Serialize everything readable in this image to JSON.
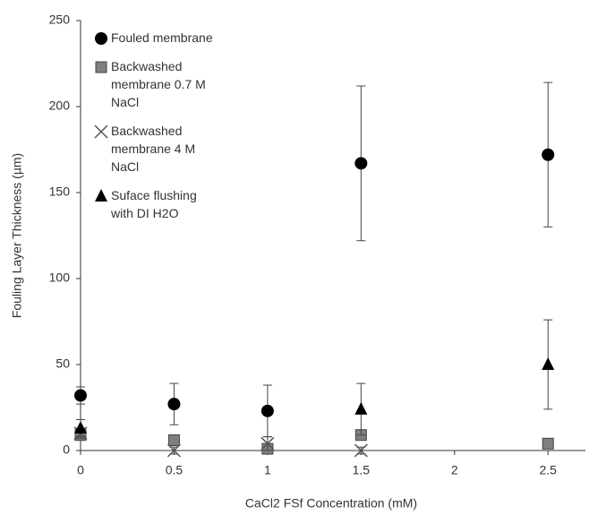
{
  "chart_data": {
    "type": "scatter",
    "x_label": "CaCl2 FSf Concentration (mM)",
    "y_label": "Fouling Layer Thickness (µm)",
    "xlim": [
      0,
      2.7
    ],
    "xticks": [
      0,
      0.5,
      1,
      1.5,
      2,
      2.5
    ],
    "ylim": [
      0,
      250
    ],
    "yticks": [
      0,
      50,
      100,
      150,
      200,
      250
    ],
    "grid": false,
    "legend": "upper left",
    "series": [
      {
        "name": "Fouled membrane",
        "marker": "circle",
        "color": "#000000",
        "x": [
          0,
          0.5,
          1,
          1.5,
          2.5
        ],
        "values": [
          32,
          27,
          23,
          167,
          172
        ],
        "errors": [
          5,
          12,
          15,
          45,
          42
        ]
      },
      {
        "name": "Backwashed membrane 0.7 M NaCl",
        "marker": "square",
        "color": "#7f7f7f",
        "x": [
          0,
          0.5,
          1,
          1.5,
          2.5
        ],
        "values": [
          9,
          6,
          1,
          9,
          4
        ],
        "errors": [
          3,
          3,
          2,
          3,
          2
        ]
      },
      {
        "name": "Backwashed membrane 4 M NaCl",
        "marker": "x",
        "color": "#555555",
        "x": [
          0,
          0.5,
          1,
          1.5
        ],
        "values": [
          10,
          0,
          4,
          0
        ],
        "errors": [
          3,
          2,
          4,
          2
        ]
      },
      {
        "name": "Suface flushing with DI H2O",
        "marker": "triangle",
        "color": "#000000",
        "x": [
          0,
          1.5,
          2.5
        ],
        "values": [
          13,
          24,
          50
        ],
        "errors": [
          5,
          15,
          26
        ]
      }
    ]
  }
}
